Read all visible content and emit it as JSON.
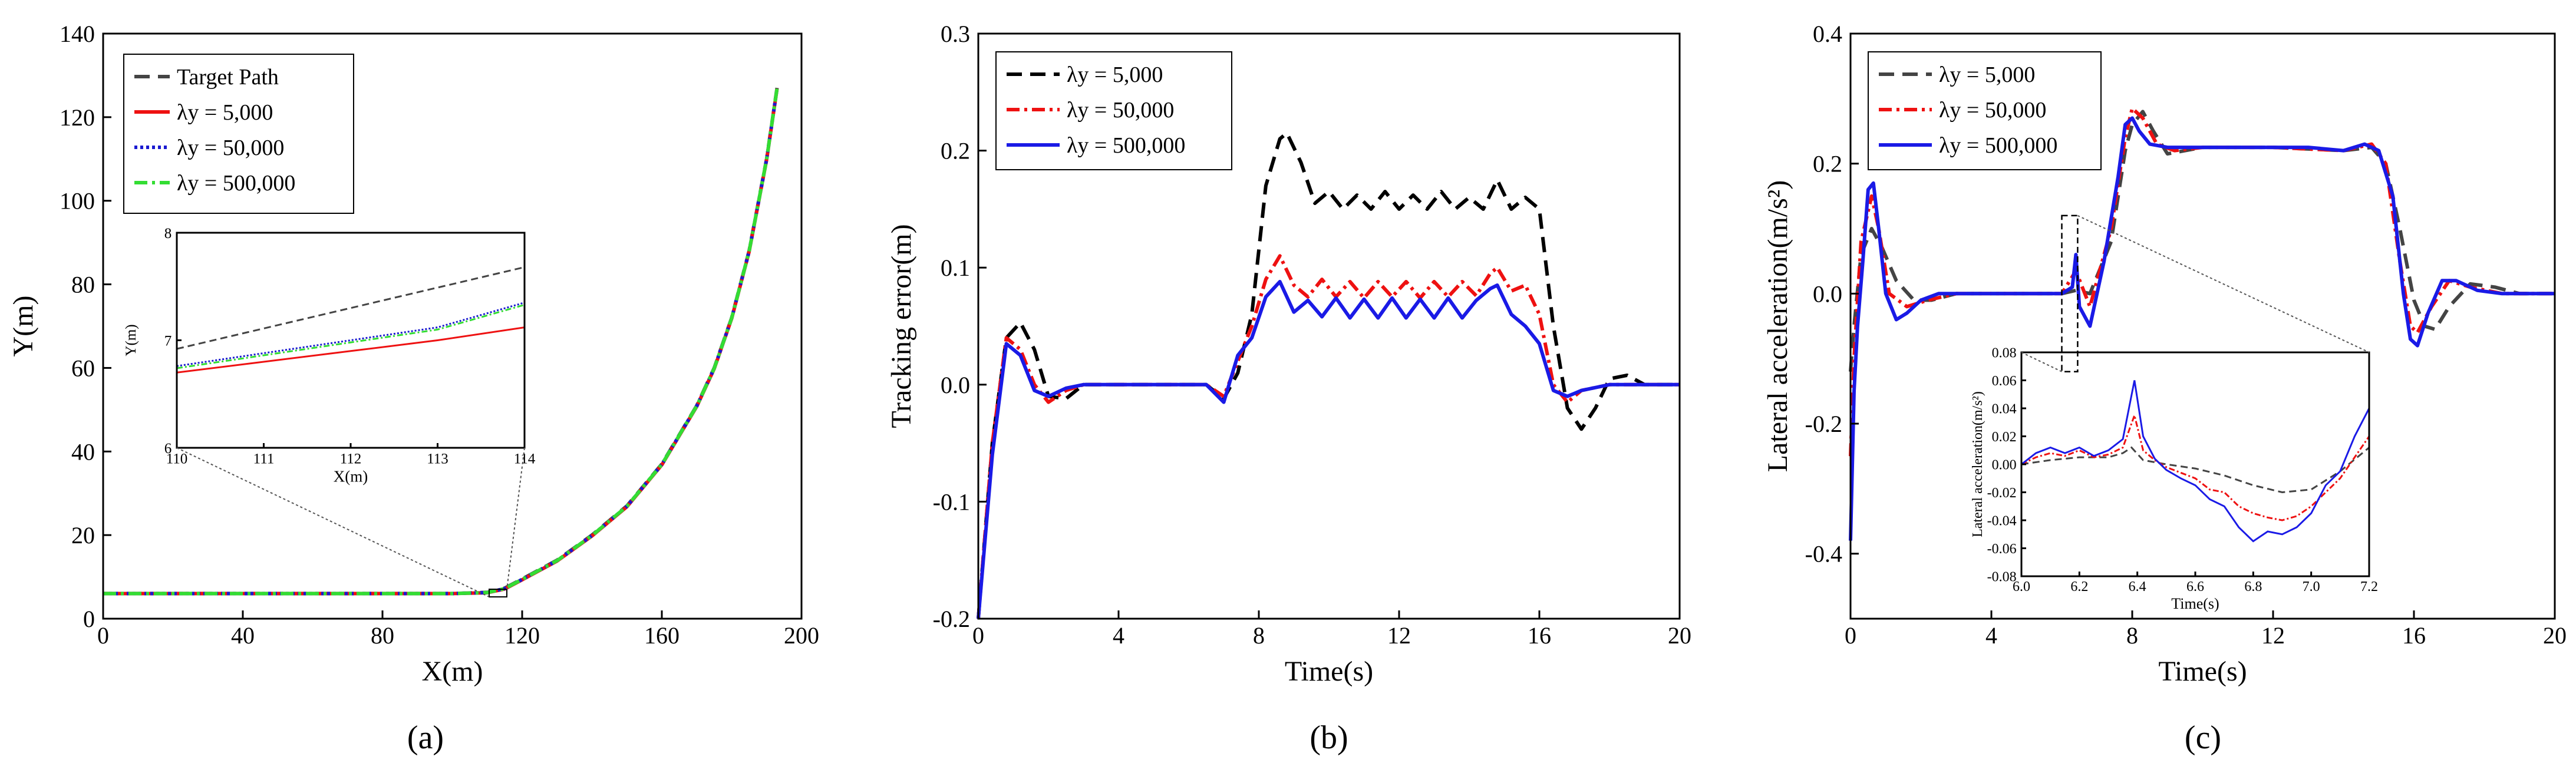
{
  "figure": {
    "panel_labels": [
      "(a)",
      "(b)",
      "(c)"
    ]
  },
  "chart_data": [
    {
      "type": "line",
      "panel": "(a)",
      "xlabel": "X(m)",
      "ylabel": "Y(m)",
      "xlim": [
        0,
        200
      ],
      "ylim": [
        0,
        140
      ],
      "xticks": [
        "0",
        "40",
        "80",
        "120",
        "160",
        "200"
      ],
      "yticks": [
        "0",
        "20",
        "40",
        "60",
        "80",
        "100",
        "120",
        "140"
      ],
      "legend": {
        "location": "top-left"
      },
      "series": [
        {
          "name": "Target Path",
          "color": "#444444",
          "style": "dashed",
          "x": [
            0,
            100,
            110,
            115,
            120,
            130,
            140,
            150,
            160,
            170,
            175,
            180,
            185,
            190,
            193
          ],
          "y": [
            6,
            6,
            6.3,
            7.3,
            9.5,
            14,
            20,
            27,
            37,
            51,
            60,
            72,
            88,
            110,
            127
          ]
        },
        {
          "name": "λy = 5,000",
          "color": "#ee1111",
          "style": "solid",
          "x": [
            0,
            100,
            110,
            115,
            120,
            130,
            140,
            150,
            160,
            170,
            175,
            180,
            185,
            190,
            193
          ],
          "y": [
            6,
            6,
            6.2,
            7.1,
            9.3,
            13.8,
            19.8,
            26.8,
            36.8,
            50.8,
            59.8,
            71.8,
            87.8,
            109.8,
            126.8
          ]
        },
        {
          "name": "λy = 50,000",
          "color": "#1a1ad0",
          "style": "dotted",
          "x": [
            0,
            100,
            110,
            115,
            120,
            130,
            140,
            150,
            160,
            170,
            175,
            180,
            185,
            190,
            193
          ],
          "y": [
            6,
            6,
            6.25,
            7.2,
            9.4,
            13.9,
            19.9,
            26.9,
            36.9,
            50.9,
            59.9,
            71.9,
            87.9,
            109.9,
            126.9
          ]
        },
        {
          "name": "λy = 500,000",
          "color": "#33dd33",
          "style": "dashdot",
          "x": [
            0,
            100,
            110,
            115,
            120,
            130,
            140,
            150,
            160,
            170,
            175,
            180,
            185,
            190,
            193
          ],
          "y": [
            6,
            6,
            6.25,
            7.2,
            9.4,
            13.9,
            19.9,
            26.9,
            36.9,
            50.9,
            59.9,
            71.9,
            87.9,
            109.9,
            126.9
          ]
        }
      ],
      "inset": {
        "xlabel": "X(m)",
        "ylabel": "Y(m)",
        "xlim": [
          110,
          114
        ],
        "ylim": [
          6,
          8
        ],
        "xticks": [
          "110",
          "111",
          "112",
          "113",
          "114"
        ],
        "yticks": [
          "6",
          "7",
          "8"
        ],
        "series": [
          {
            "name": "Target Path",
            "x": [
              110,
              114
            ],
            "y": [
              6.92,
              7.68
            ]
          },
          {
            "name": "λy = 5,000",
            "x": [
              110,
              111,
              112,
              113,
              114
            ],
            "y": [
              6.7,
              6.8,
              6.9,
              7.0,
              7.12
            ]
          },
          {
            "name": "λy = 50,000",
            "x": [
              110,
              111,
              112,
              113,
              114
            ],
            "y": [
              6.76,
              6.88,
              7.0,
              7.12,
              7.35
            ]
          },
          {
            "name": "λy = 500,000",
            "x": [
              110,
              111,
              112,
              113,
              114
            ],
            "y": [
              6.74,
              6.86,
              6.98,
              7.1,
              7.33
            ]
          }
        ],
        "zoom_region": {
          "x": [
            110,
            114
          ],
          "y": [
            6,
            8
          ]
        }
      }
    },
    {
      "type": "line",
      "panel": "(b)",
      "xlabel": "Time(s)",
      "ylabel": "Tracking error(m)",
      "xlim": [
        0,
        20
      ],
      "ylim": [
        -0.2,
        0.3
      ],
      "xticks": [
        "0",
        "4",
        "8",
        "12",
        "16",
        "20"
      ],
      "yticks": [
        "-0.2",
        "-0.1",
        "0.0",
        "0.1",
        "0.2",
        "0.3"
      ],
      "legend": {
        "location": "top-left"
      },
      "series": [
        {
          "name": "λy = 5,000",
          "color": "#000000",
          "style": "dashed",
          "x": [
            0,
            0.4,
            0.8,
            1.2,
            1.6,
            2.0,
            2.5,
            3.0,
            5.0,
            6.5,
            7.0,
            7.4,
            7.8,
            8.2,
            8.6,
            8.8,
            9.2,
            9.6,
            10.0,
            10.4,
            10.8,
            11.2,
            11.6,
            12.0,
            12.4,
            12.8,
            13.2,
            13.6,
            14.0,
            14.4,
            14.8,
            15.2,
            15.6,
            16.0,
            16.4,
            16.8,
            17.2,
            17.6,
            18.0,
            18.5,
            19.0,
            20.0
          ],
          "y": [
            -0.2,
            -0.05,
            0.04,
            0.053,
            0.03,
            -0.01,
            -0.012,
            0.0,
            0.0,
            0.0,
            -0.012,
            0.01,
            0.06,
            0.17,
            0.21,
            0.215,
            0.19,
            0.155,
            0.165,
            0.15,
            0.162,
            0.15,
            0.165,
            0.15,
            0.162,
            0.15,
            0.165,
            0.15,
            0.16,
            0.15,
            0.175,
            0.15,
            0.16,
            0.15,
            0.05,
            -0.02,
            -0.038,
            -0.02,
            0.005,
            0.008,
            0.0,
            0.0
          ]
        },
        {
          "name": "λy = 50,000",
          "color": "#ee1111",
          "style": "dashdot",
          "x": [
            0,
            0.4,
            0.8,
            1.2,
            1.6,
            2.0,
            2.5,
            3.0,
            5.0,
            6.5,
            7.0,
            7.4,
            7.8,
            8.2,
            8.6,
            9.0,
            9.4,
            9.8,
            10.2,
            10.6,
            11.0,
            11.4,
            11.8,
            12.2,
            12.6,
            13.0,
            13.4,
            13.8,
            14.2,
            14.6,
            14.8,
            15.2,
            15.6,
            16.0,
            16.4,
            16.8,
            17.2,
            18.0,
            20.0
          ],
          "y": [
            -0.2,
            -0.05,
            0.04,
            0.03,
            0.0,
            -0.015,
            -0.005,
            0.0,
            0.0,
            0.0,
            -0.01,
            0.02,
            0.05,
            0.09,
            0.11,
            0.085,
            0.075,
            0.09,
            0.075,
            0.088,
            0.074,
            0.088,
            0.075,
            0.088,
            0.074,
            0.088,
            0.075,
            0.088,
            0.076,
            0.095,
            0.1,
            0.08,
            0.085,
            0.06,
            0.0,
            -0.015,
            -0.005,
            0.0,
            0.0
          ]
        },
        {
          "name": "λy = 500,000",
          "color": "#1a1ae6",
          "style": "solid",
          "x": [
            0,
            0.4,
            0.8,
            1.2,
            1.6,
            2.0,
            2.5,
            3.0,
            5.0,
            6.5,
            7.0,
            7.4,
            7.8,
            8.2,
            8.6,
            9.0,
            9.4,
            9.8,
            10.2,
            10.6,
            11.0,
            11.4,
            11.8,
            12.2,
            12.6,
            13.0,
            13.4,
            13.8,
            14.2,
            14.6,
            14.8,
            15.2,
            15.6,
            16.0,
            16.4,
            16.8,
            17.2,
            18.0,
            20.0
          ],
          "y": [
            -0.2,
            -0.06,
            0.035,
            0.025,
            -0.005,
            -0.01,
            -0.003,
            0.0,
            0.0,
            0.0,
            -0.015,
            0.025,
            0.04,
            0.075,
            0.088,
            0.062,
            0.072,
            0.058,
            0.074,
            0.057,
            0.073,
            0.057,
            0.074,
            0.057,
            0.073,
            0.057,
            0.074,
            0.057,
            0.072,
            0.082,
            0.085,
            0.06,
            0.05,
            0.035,
            -0.005,
            -0.01,
            -0.005,
            0.0,
            0.0
          ]
        }
      ]
    },
    {
      "type": "line",
      "panel": "(c)",
      "xlabel": "Time(s)",
      "ylabel": "Lateral acceleration(m/s²)",
      "xlim": [
        0,
        20
      ],
      "ylim": [
        -0.5,
        0.4
      ],
      "xticks": [
        "0",
        "4",
        "8",
        "12",
        "16",
        "20"
      ],
      "yticks": [
        "-0.4",
        "-0.2",
        "0.0",
        "0.2",
        "0.4"
      ],
      "legend": {
        "location": "top-left"
      },
      "series": [
        {
          "name": "λy = 5,000",
          "color": "#444444",
          "style": "dashed",
          "x": [
            0,
            0.1,
            0.3,
            0.6,
            0.9,
            1.3,
            1.8,
            2.3,
            3.0,
            6.0,
            6.4,
            6.8,
            7.4,
            7.8,
            8.0,
            8.3,
            8.6,
            9.0,
            10.0,
            12.0,
            14.0,
            14.8,
            15.2,
            15.6,
            16.0,
            16.3,
            16.6,
            17.0,
            17.6,
            18.3,
            19.0,
            20.0
          ],
          "y": [
            -0.12,
            -0.05,
            0.06,
            0.1,
            0.07,
            0.02,
            -0.01,
            -0.01,
            0.0,
            0.0,
            0.005,
            0.0,
            0.08,
            0.22,
            0.26,
            0.28,
            0.25,
            0.215,
            0.225,
            0.225,
            0.22,
            0.225,
            0.2,
            0.1,
            -0.01,
            -0.05,
            -0.055,
            -0.02,
            0.015,
            0.01,
            0.0,
            0.0
          ]
        },
        {
          "name": "λy = 50,000",
          "color": "#ee1111",
          "style": "dashdot",
          "x": [
            0,
            0.1,
            0.3,
            0.6,
            0.8,
            1.1,
            1.6,
            2.2,
            3.0,
            6.0,
            6.4,
            6.8,
            7.4,
            7.8,
            8.0,
            8.3,
            8.7,
            9.2,
            10.0,
            12.0,
            14.0,
            14.8,
            15.2,
            15.6,
            15.9,
            16.1,
            16.5,
            17.0,
            17.6,
            18.5,
            20.0
          ],
          "y": [
            -0.25,
            -0.1,
            0.08,
            0.15,
            0.1,
            0.0,
            -0.02,
            -0.01,
            0.0,
            0.0,
            0.035,
            -0.02,
            0.1,
            0.24,
            0.285,
            0.27,
            0.23,
            0.22,
            0.225,
            0.225,
            0.22,
            0.23,
            0.2,
            0.05,
            -0.05,
            -0.06,
            -0.02,
            0.02,
            0.01,
            0.0,
            0.0
          ]
        },
        {
          "name": "λy = 500,000",
          "color": "#1a1ae6",
          "style": "solid",
          "x": [
            0,
            0.1,
            0.2,
            0.35,
            0.5,
            0.65,
            0.8,
            1.0,
            1.3,
            1.6,
            2.0,
            2.5,
            3.0,
            6.0,
            6.3,
            6.4,
            6.5,
            6.8,
            7.2,
            7.6,
            7.8,
            8.0,
            8.2,
            8.5,
            9.0,
            10.0,
            11.0,
            12.0,
            13.0,
            14.0,
            14.6,
            15.0,
            15.4,
            15.7,
            15.9,
            16.1,
            16.4,
            16.8,
            17.2,
            17.8,
            18.5,
            20.0
          ],
          "y": [
            -0.38,
            -0.15,
            -0.05,
            0.05,
            0.16,
            0.17,
            0.1,
            0.0,
            -0.04,
            -0.03,
            -0.01,
            0.0,
            0.0,
            0.0,
            0.01,
            0.06,
            -0.02,
            -0.05,
            0.05,
            0.18,
            0.26,
            0.27,
            0.25,
            0.23,
            0.225,
            0.225,
            0.225,
            0.225,
            0.225,
            0.22,
            0.23,
            0.22,
            0.15,
            0.0,
            -0.07,
            -0.08,
            -0.03,
            0.02,
            0.02,
            0.005,
            0.0,
            0.0
          ]
        }
      ],
      "inset": {
        "xlabel": "Time(s)",
        "ylabel": "Lateral acceleration(m/s²)",
        "xlim": [
          6.0,
          7.2
        ],
        "ylim": [
          -0.08,
          0.08
        ],
        "xticks": [
          "6.0",
          "6.2",
          "6.4",
          "6.6",
          "6.8",
          "7.0",
          "7.2"
        ],
        "yticks": [
          "0.08",
          "0.06",
          "0.04",
          "0.02",
          "0.00",
          "-0.02",
          "-0.04",
          "-0.06",
          "-0.08"
        ],
        "series": [
          {
            "name": "λy = 5,000",
            "x": [
              6.0,
              6.1,
              6.2,
              6.3,
              6.35,
              6.38,
              6.42,
              6.5,
              6.6,
              6.7,
              6.8,
              6.9,
              7.0,
              7.1,
              7.2
            ],
            "y": [
              0.0,
              0.003,
              0.005,
              0.005,
              0.008,
              0.012,
              0.003,
              0.0,
              -0.003,
              -0.008,
              -0.015,
              -0.02,
              -0.018,
              -0.005,
              0.012
            ]
          },
          {
            "name": "λy = 50,000",
            "x": [
              6.0,
              6.05,
              6.1,
              6.15,
              6.2,
              6.25,
              6.3,
              6.35,
              6.39,
              6.42,
              6.46,
              6.5,
              6.55,
              6.6,
              6.65,
              6.7,
              6.75,
              6.8,
              6.85,
              6.9,
              6.95,
              7.0,
              7.05,
              7.1,
              7.15,
              7.2
            ],
            "y": [
              0.0,
              0.005,
              0.008,
              0.006,
              0.01,
              0.005,
              0.007,
              0.012,
              0.035,
              0.01,
              0.003,
              -0.002,
              -0.006,
              -0.01,
              -0.018,
              -0.02,
              -0.03,
              -0.035,
              -0.038,
              -0.04,
              -0.037,
              -0.03,
              -0.02,
              -0.01,
              0.005,
              0.02
            ]
          },
          {
            "name": "λy = 500,000",
            "x": [
              6.0,
              6.05,
              6.1,
              6.15,
              6.2,
              6.25,
              6.3,
              6.35,
              6.39,
              6.42,
              6.46,
              6.5,
              6.55,
              6.6,
              6.65,
              6.7,
              6.75,
              6.8,
              6.85,
              6.9,
              6.95,
              7.0,
              7.05,
              7.1,
              7.15,
              7.2
            ],
            "y": [
              0.0,
              0.008,
              0.012,
              0.008,
              0.012,
              0.006,
              0.01,
              0.018,
              0.06,
              0.02,
              0.004,
              -0.004,
              -0.01,
              -0.015,
              -0.025,
              -0.03,
              -0.045,
              -0.055,
              -0.048,
              -0.05,
              -0.045,
              -0.035,
              -0.015,
              -0.005,
              0.02,
              0.04
            ]
          }
        ],
        "zoom_region": {
          "x": [
            6.0,
            6.45
          ],
          "y": [
            -0.12,
            0.12
          ]
        }
      }
    }
  ]
}
